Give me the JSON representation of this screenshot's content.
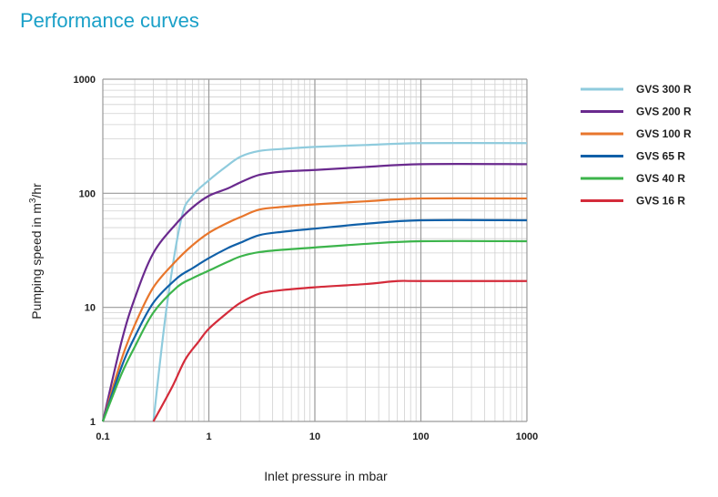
{
  "title": "Performance curves",
  "chart_data": {
    "type": "line",
    "scale": "log-log",
    "xlabel": "Inlet pressure in mbar",
    "ylabel_main": "Pumping speed in m",
    "ylabel_sup": "3",
    "ylabel_tail": "/hr",
    "xlim": [
      0.1,
      1000
    ],
    "ylim": [
      1,
      1000
    ],
    "x_ticks": [
      {
        "value": 0.1,
        "label": "0.1"
      },
      {
        "value": 1,
        "label": "1"
      },
      {
        "value": 10,
        "label": "10"
      },
      {
        "value": 100,
        "label": "100"
      },
      {
        "value": 1000,
        "label": "1000"
      }
    ],
    "y_ticks": [
      {
        "value": 1,
        "label": "1"
      },
      {
        "value": 10,
        "label": "10"
      },
      {
        "value": 100,
        "label": "100"
      },
      {
        "value": 1000,
        "label": "1000"
      }
    ],
    "grid": true,
    "legend_position": "right",
    "series": [
      {
        "name": "GVS 300 R",
        "color": "#8fcbdd",
        "points": [
          [
            0.3,
            1
          ],
          [
            0.4,
            10
          ],
          [
            0.55,
            60
          ],
          [
            0.7,
            95
          ],
          [
            1,
            130
          ],
          [
            1.5,
            175
          ],
          [
            2,
            210
          ],
          [
            3,
            235
          ],
          [
            5,
            245
          ],
          [
            10,
            255
          ],
          [
            30,
            265
          ],
          [
            100,
            275
          ],
          [
            1000,
            275
          ]
        ]
      },
      {
        "name": "GVS 200 R",
        "color": "#6a2a8e",
        "points": [
          [
            0.1,
            1
          ],
          [
            0.15,
            5
          ],
          [
            0.2,
            12
          ],
          [
            0.3,
            30
          ],
          [
            0.5,
            55
          ],
          [
            0.7,
            75
          ],
          [
            1,
            95
          ],
          [
            1.5,
            110
          ],
          [
            2,
            125
          ],
          [
            3,
            145
          ],
          [
            5,
            155
          ],
          [
            10,
            160
          ],
          [
            30,
            170
          ],
          [
            100,
            180
          ],
          [
            1000,
            180
          ]
        ]
      },
      {
        "name": "GVS 100 R",
        "color": "#e8762c",
        "points": [
          [
            0.1,
            1
          ],
          [
            0.15,
            3.5
          ],
          [
            0.2,
            7
          ],
          [
            0.3,
            15
          ],
          [
            0.5,
            26
          ],
          [
            0.7,
            35
          ],
          [
            1,
            45
          ],
          [
            1.5,
            55
          ],
          [
            2,
            62
          ],
          [
            3,
            72
          ],
          [
            5,
            76
          ],
          [
            10,
            80
          ],
          [
            30,
            85
          ],
          [
            100,
            90
          ],
          [
            1000,
            90
          ]
        ]
      },
      {
        "name": "GVS 65 R",
        "color": "#1060a8",
        "points": [
          [
            0.1,
            1
          ],
          [
            0.15,
            3
          ],
          [
            0.2,
            5.5
          ],
          [
            0.3,
            11
          ],
          [
            0.5,
            18
          ],
          [
            0.7,
            22
          ],
          [
            1,
            27
          ],
          [
            1.5,
            33
          ],
          [
            2,
            37
          ],
          [
            3,
            43
          ],
          [
            5,
            46
          ],
          [
            10,
            49
          ],
          [
            30,
            54
          ],
          [
            100,
            58
          ],
          [
            1000,
            58
          ]
        ]
      },
      {
        "name": "GVS 40 R",
        "color": "#3cb44b",
        "points": [
          [
            0.1,
            1
          ],
          [
            0.15,
            2.6
          ],
          [
            0.2,
            4.5
          ],
          [
            0.3,
            9
          ],
          [
            0.5,
            15
          ],
          [
            0.7,
            18
          ],
          [
            1,
            21
          ],
          [
            1.5,
            25
          ],
          [
            2,
            28
          ],
          [
            3,
            30.5
          ],
          [
            5,
            32
          ],
          [
            10,
            33.5
          ],
          [
            30,
            36
          ],
          [
            100,
            38
          ],
          [
            1000,
            38
          ]
        ]
      },
      {
        "name": "GVS 16 R",
        "color": "#d42b3a",
        "points": [
          [
            0.3,
            1
          ],
          [
            0.45,
            2
          ],
          [
            0.6,
            3.5
          ],
          [
            0.8,
            5
          ],
          [
            1,
            6.5
          ],
          [
            1.5,
            9
          ],
          [
            2,
            11
          ],
          [
            3,
            13.2
          ],
          [
            5,
            14.2
          ],
          [
            10,
            15
          ],
          [
            30,
            16
          ],
          [
            60,
            17
          ],
          [
            100,
            17
          ],
          [
            1000,
            17
          ]
        ]
      }
    ]
  }
}
